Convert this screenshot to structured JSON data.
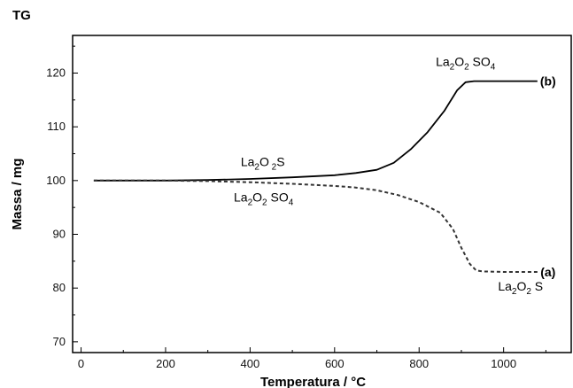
{
  "chart_data": {
    "type": "line",
    "title": "TG",
    "xlabel": "Temperatura / °C",
    "ylabel": "Massa / mg",
    "xlim": [
      -20,
      1160
    ],
    "ylim": [
      68,
      127
    ],
    "xticks": [
      0,
      200,
      400,
      600,
      800,
      1000
    ],
    "yticks": [
      70,
      80,
      90,
      100,
      110,
      120
    ],
    "grid": false,
    "series": [
      {
        "name": "(b)",
        "style": "solid",
        "color": "#000000",
        "x": [
          30,
          100,
          200,
          300,
          400,
          500,
          600,
          650,
          700,
          740,
          780,
          820,
          860,
          890,
          910,
          930,
          1000,
          1080
        ],
        "y": [
          100,
          100,
          100,
          100.1,
          100.3,
          100.6,
          101.0,
          101.4,
          102.0,
          103.3,
          105.8,
          109.0,
          113.0,
          116.8,
          118.3,
          118.5,
          118.5,
          118.5
        ]
      },
      {
        "name": "(a)",
        "style": "dashed",
        "color": "#333333",
        "x": [
          30,
          100,
          200,
          300,
          400,
          500,
          600,
          650,
          700,
          750,
          800,
          850,
          880,
          900,
          920,
          935,
          950,
          1000,
          1080
        ],
        "y": [
          100,
          100,
          100,
          99.9,
          99.7,
          99.4,
          99.0,
          98.7,
          98.2,
          97.3,
          96.0,
          94.0,
          91.0,
          87.5,
          84.5,
          83.3,
          83.1,
          83.0,
          83.0
        ]
      }
    ],
    "annotations": [
      {
        "text_main": "La",
        "sub1": "2",
        "mid": "O",
        "sub2": "2",
        "tail": " SO",
        "sub3": "4",
        "at": [
          910,
          121.3
        ]
      },
      {
        "text_main": "La",
        "sub1": "2",
        "mid": "O",
        "sub2": " 2",
        "tail": "S",
        "sub3": "",
        "at": [
          430,
          102.7
        ]
      },
      {
        "text_main": "La",
        "sub1": "2",
        "mid": "O",
        "sub2": "2",
        "tail": " SO",
        "sub3": "4",
        "at": [
          432,
          96.1
        ]
      },
      {
        "text_main": "La",
        "sub1": "2",
        "mid": "O",
        "sub2": "2",
        "tail": " S",
        "sub3": "",
        "at": [
          1040,
          79.5
        ]
      }
    ],
    "series_labels": [
      {
        "text": "(b)",
        "at": [
          1105,
          118.5
        ]
      },
      {
        "text": "(a)",
        "at": [
          1105,
          83.0
        ]
      }
    ]
  }
}
